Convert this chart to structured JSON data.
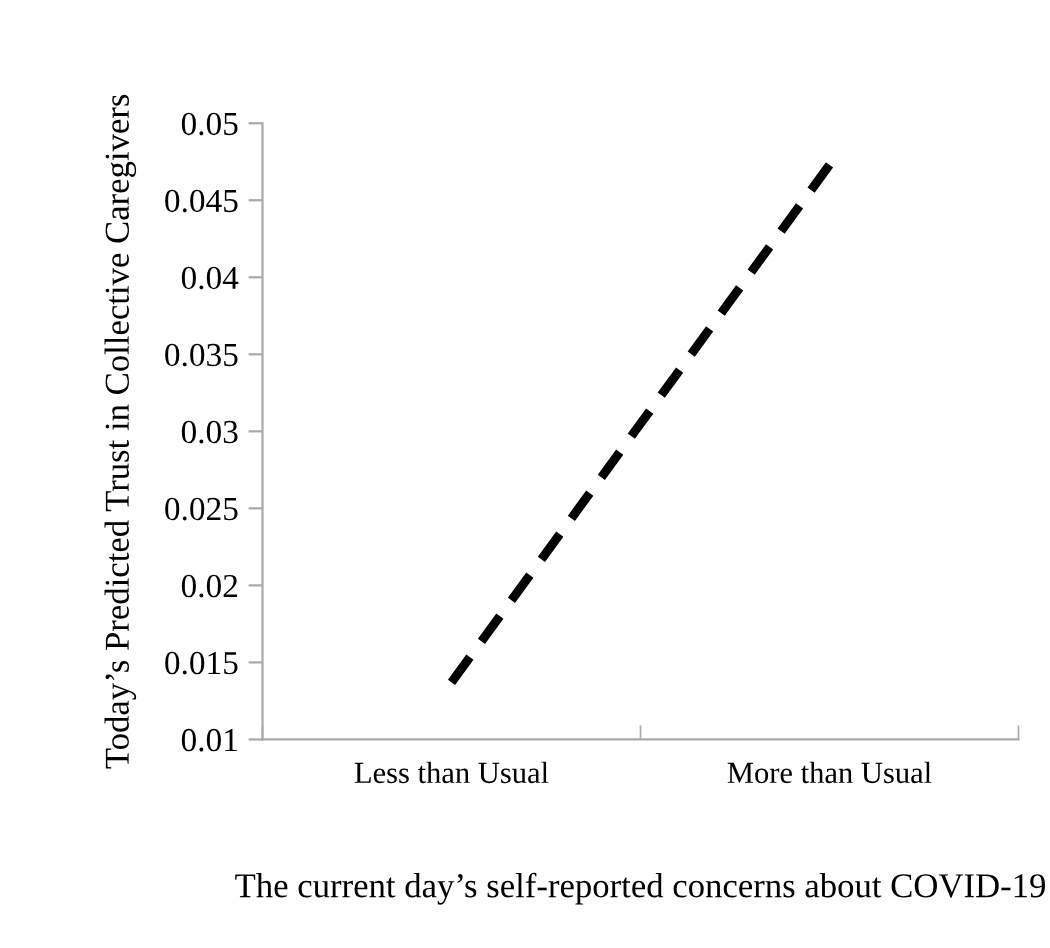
{
  "chart_data": {
    "type": "line",
    "xlabel": "The current day’s self-reported concerns about COVID-19",
    "ylabel": "Today’s Predicted Trust in Collective Caregivers",
    "categories": [
      "Less than Usual",
      "More than Usual"
    ],
    "series": [
      {
        "color": "#000000",
        "values": [
          0.0137,
          0.0473
        ]
      }
    ],
    "ylim": [
      0.01,
      0.05
    ],
    "yticks": [
      0.01,
      0.015,
      0.02,
      0.025,
      0.03,
      0.035,
      0.04,
      0.045,
      0.05
    ],
    "line_style": "dashed",
    "marker": "none",
    "grid": false
  }
}
